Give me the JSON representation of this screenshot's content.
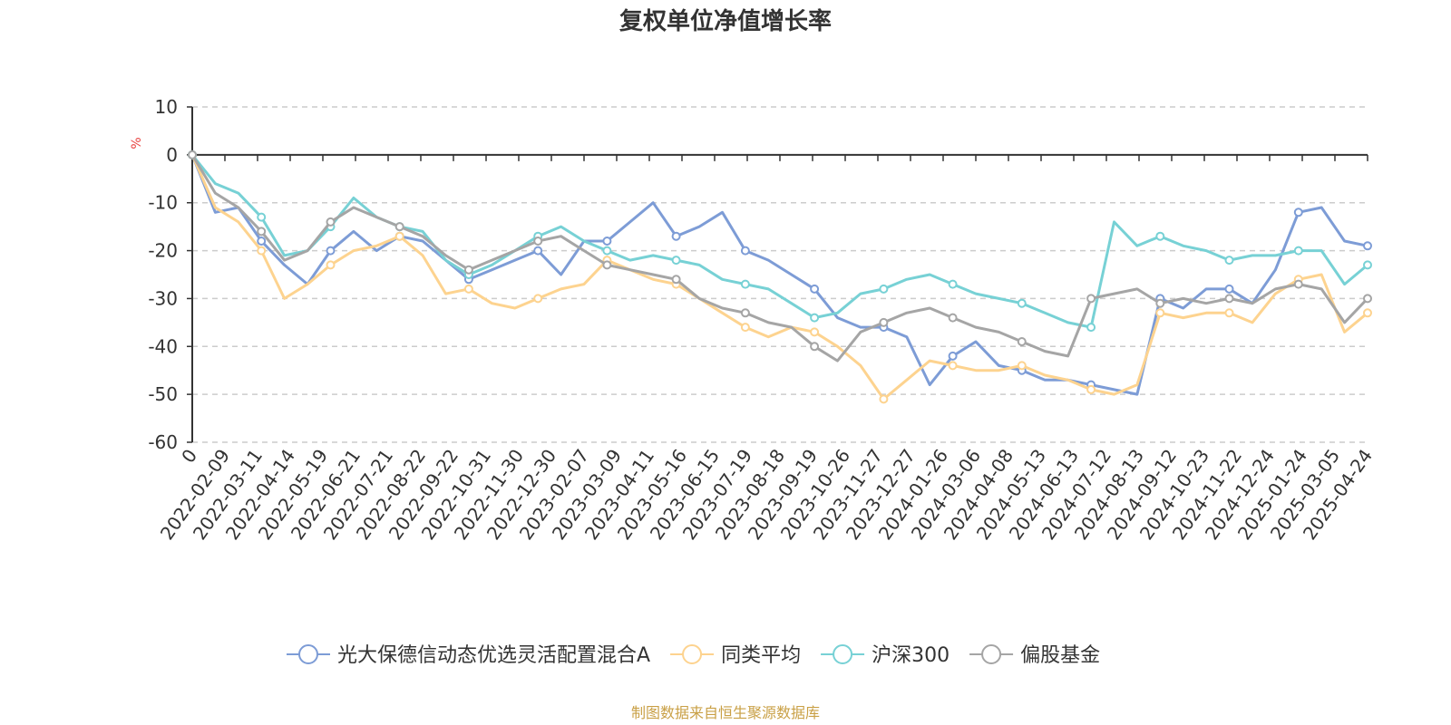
{
  "chart_data": {
    "type": "line",
    "title": "复权单位净值增长率",
    "ylabel": "%",
    "ylim": [
      -60,
      10
    ],
    "yticks": [
      10,
      0,
      -10,
      -20,
      -30,
      -40,
      -50,
      -60
    ],
    "grid": true,
    "legend_position": "bottom",
    "x_tick_labels": [
      "0",
      "2022-02-09",
      "2022-03-11",
      "2022-04-14",
      "2022-05-19",
      "2022-06-21",
      "2022-07-21",
      "2022-08-22",
      "2022-09-22",
      "2022-10-31",
      "2022-11-30",
      "2022-12-30",
      "2023-02-07",
      "2023-03-09",
      "2023-04-11",
      "2023-05-16",
      "2023-06-15",
      "2023-07-19",
      "2023-08-18",
      "2023-09-19",
      "2023-10-26",
      "2023-11-27",
      "2023-12-27",
      "2024-01-26",
      "2024-03-06",
      "2024-04-08",
      "2024-05-13",
      "2024-06-13",
      "2024-07-12",
      "2024-08-13",
      "2024-09-12",
      "2024-10-23",
      "2024-11-22",
      "2024-12-24",
      "2025-01-24",
      "2025-03-05",
      "2025-04-24"
    ],
    "series": [
      {
        "name": "光大保德信动态优选灵活配置混合A",
        "color": "#7d9cd6",
        "values": [
          0,
          -12,
          -11,
          -18,
          -23,
          -27,
          -20,
          -16,
          -20,
          -17,
          -18,
          -22,
          -26,
          -24,
          -22,
          -20,
          -25,
          -18,
          -18,
          -14,
          -10,
          -17,
          -15,
          -12,
          -20,
          -22,
          -25,
          -28,
          -34,
          -36,
          -36,
          -38,
          -48,
          -42,
          -39,
          -44,
          -45,
          -47,
          -47,
          -48,
          -49,
          -50,
          -30,
          -32,
          -28,
          -28,
          -31,
          -24,
          -12,
          -11,
          -18,
          -19
        ]
      },
      {
        "name": "同类平均",
        "color": "#fdd38f",
        "values": [
          0,
          -11,
          -14,
          -20,
          -30,
          -27,
          -23,
          -20,
          -19,
          -17,
          -21,
          -29,
          -28,
          -31,
          -32,
          -30,
          -28,
          -27,
          -22,
          -24,
          -26,
          -27,
          -30,
          -33,
          -36,
          -38,
          -36,
          -37,
          -40,
          -44,
          -51,
          -47,
          -43,
          -44,
          -45,
          -45,
          -44,
          -46,
          -47,
          -49,
          -50,
          -48,
          -33,
          -34,
          -33,
          -33,
          -35,
          -29,
          -26,
          -25,
          -37,
          -33
        ]
      },
      {
        "name": "沪深300",
        "color": "#77d1d5",
        "values": [
          0,
          -6,
          -8,
          -13,
          -21,
          -20,
          -15,
          -9,
          -13,
          -15,
          -16,
          -22,
          -25,
          -23,
          -20,
          -17,
          -15,
          -18,
          -20,
          -22,
          -21,
          -22,
          -23,
          -26,
          -27,
          -28,
          -31,
          -34,
          -33,
          -29,
          -28,
          -26,
          -25,
          -27,
          -29,
          -30,
          -31,
          -33,
          -35,
          -36,
          -14,
          -19,
          -17,
          -19,
          -20,
          -22,
          -21,
          -21,
          -20,
          -20,
          -27,
          -23
        ]
      },
      {
        "name": "偏股基金",
        "color": "#a5a5a5",
        "values": [
          0,
          -8,
          -11,
          -16,
          -22,
          -20,
          -14,
          -11,
          -13,
          -15,
          -17,
          -21,
          -24,
          -22,
          -20,
          -18,
          -17,
          -20,
          -23,
          -24,
          -25,
          -26,
          -30,
          -32,
          -33,
          -35,
          -36,
          -40,
          -43,
          -37,
          -35,
          -33,
          -32,
          -34,
          -36,
          -37,
          -39,
          -41,
          -42,
          -30,
          -29,
          -28,
          -31,
          -30,
          -31,
          -30,
          -31,
          -28,
          -27,
          -28,
          -35,
          -30
        ]
      }
    ]
  },
  "source": "制图数据来自恒生聚源数据库",
  "colors": {
    "axis": "#333333",
    "grid": "#cccccc",
    "unit_label": "#e8423f",
    "source": "#c9a046"
  }
}
